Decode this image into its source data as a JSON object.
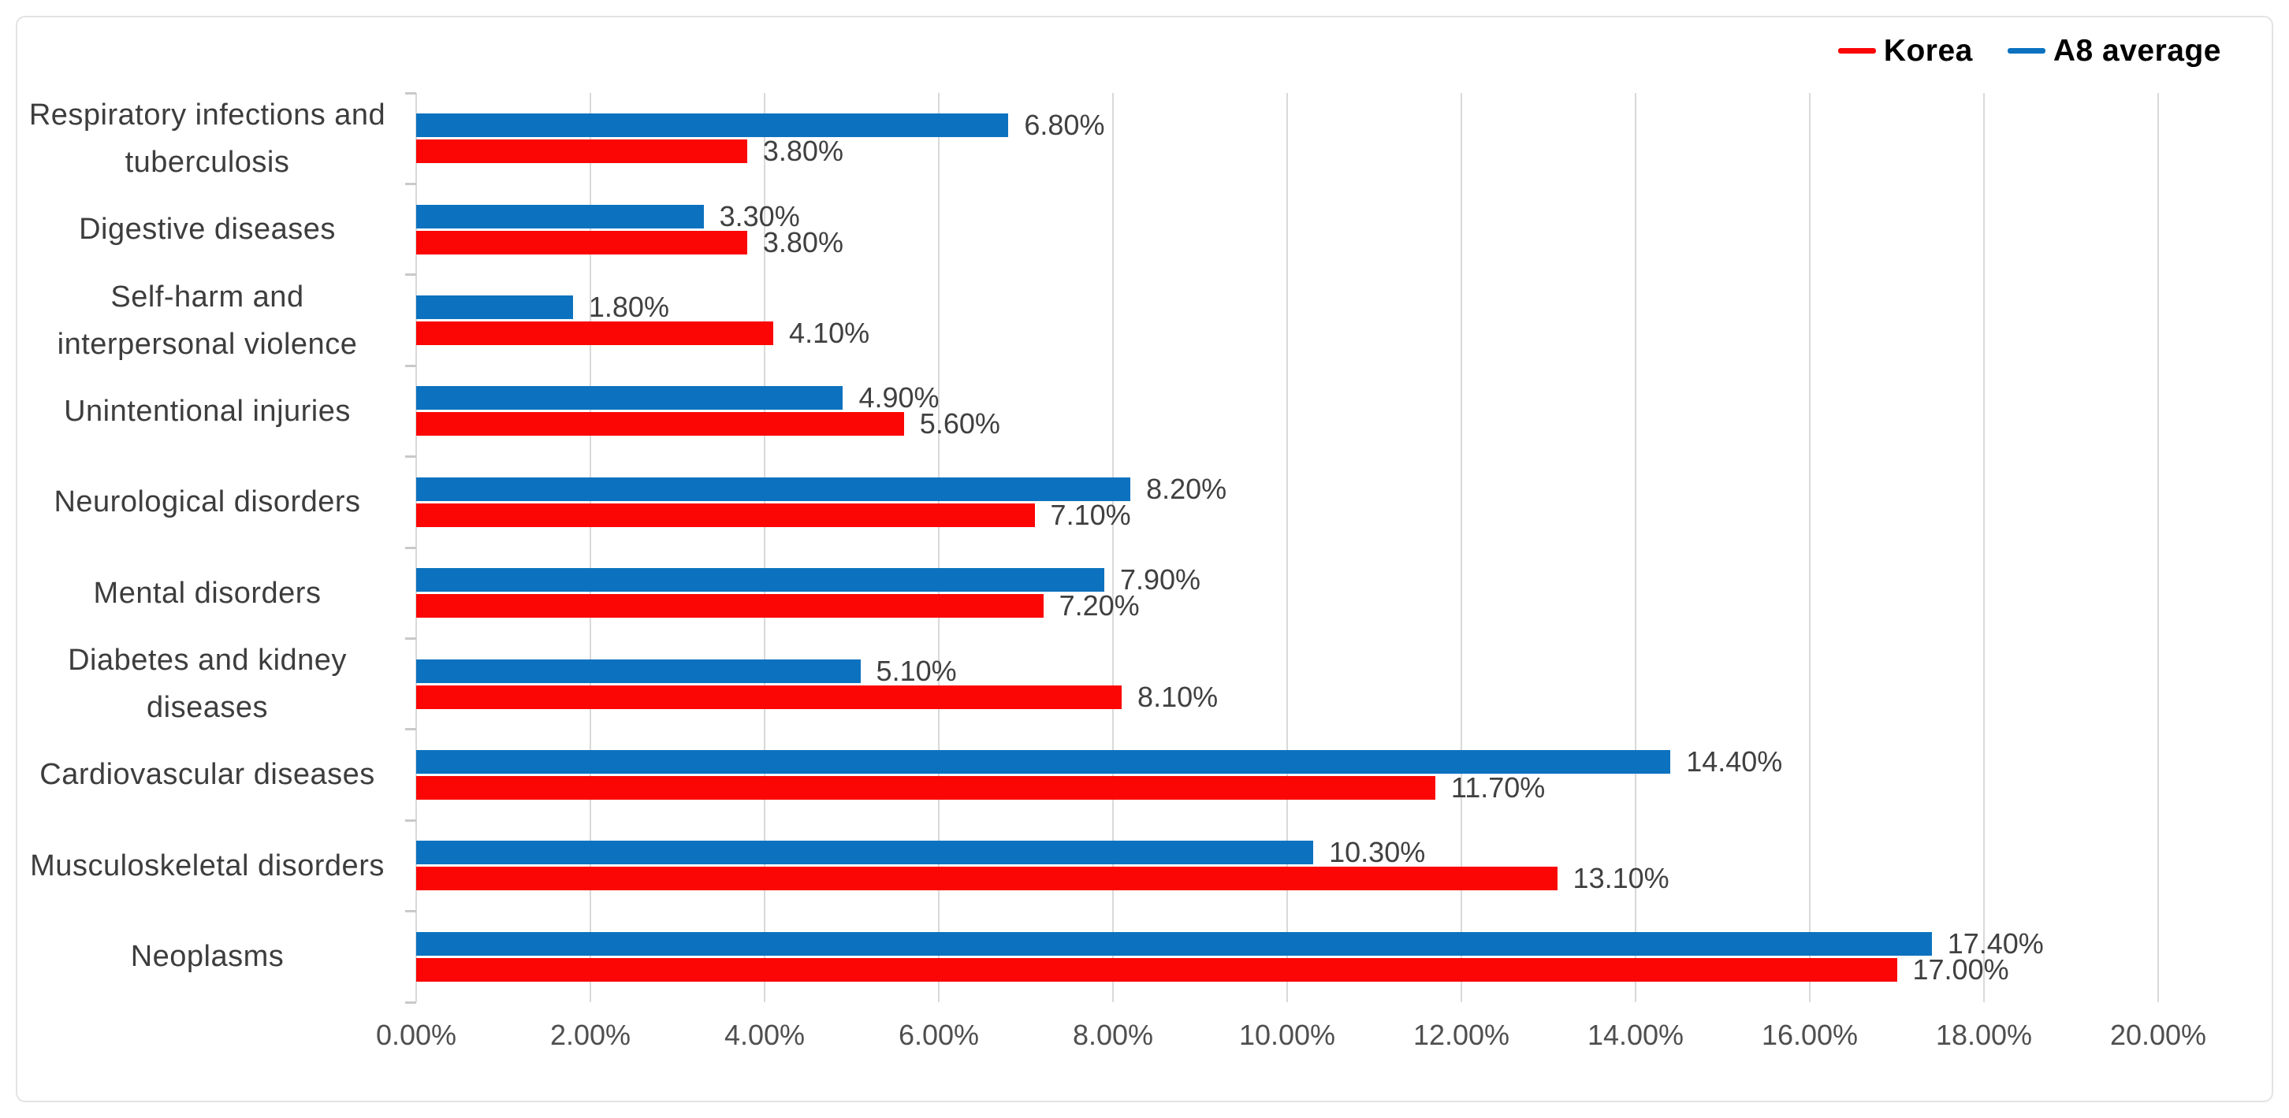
{
  "chart_data": {
    "type": "bar",
    "orientation": "horizontal",
    "title": "",
    "categories": [
      "Respiratory infections and tuberculosis",
      "Digestive diseases",
      "Self-harm and interpersonal violence",
      "Unintentional injuries",
      "Neurological disorders",
      "Mental disorders",
      "Diabetes and kidney diseases",
      "Cardiovascular diseases",
      "Musculoskeletal disorders",
      "Neoplasms"
    ],
    "category_label_lines": [
      [
        "Respiratory infections and",
        "tuberculosis"
      ],
      [
        "Digestive diseases"
      ],
      [
        "Self-harm and",
        "interpersonal violence"
      ],
      [
        "Unintentional injuries"
      ],
      [
        "Neurological disorders"
      ],
      [
        "Mental disorders"
      ],
      [
        "Diabetes and kidney",
        "diseases"
      ],
      [
        "Cardiovascular diseases"
      ],
      [
        "Musculoskeletal disorders"
      ],
      [
        "Neoplasms"
      ]
    ],
    "series": [
      {
        "name": "Korea",
        "color": "#fb0505",
        "values": [
          3.8,
          3.8,
          4.1,
          5.6,
          7.1,
          7.2,
          8.1,
          11.7,
          13.1,
          17.0
        ],
        "labels": [
          "3.80%",
          "3.80%",
          "4.10%",
          "5.60%",
          "7.10%",
          "7.20%",
          "8.10%",
          "11.70%",
          "13.10%",
          "17.00%"
        ]
      },
      {
        "name": "A8 average",
        "color": "#0c72bf",
        "values": [
          6.8,
          3.3,
          1.8,
          4.9,
          8.2,
          7.9,
          5.1,
          14.4,
          10.3,
          17.4
        ],
        "labels": [
          "6.80%",
          "3.30%",
          "1.80%",
          "4.90%",
          "8.20%",
          "7.90%",
          "5.10%",
          "14.40%",
          "10.30%",
          "17.40%"
        ]
      }
    ],
    "group_draw_order": [
      "A8 average",
      "Korea"
    ],
    "x_axis": {
      "min": 0,
      "max": 20,
      "tick_step": 2,
      "tick_labels": [
        "0.00%",
        "2.00%",
        "4.00%",
        "6.00%",
        "8.00%",
        "10.00%",
        "12.00%",
        "14.00%",
        "16.00%",
        "18.00%",
        "20.00%"
      ],
      "grid": true
    },
    "legend": {
      "position": "top-right",
      "items": [
        {
          "label": "Korea",
          "color": "#fb0505"
        },
        {
          "label": "A8 average",
          "color": "#0c72bf"
        }
      ]
    }
  },
  "colors": {
    "background": "#ffffff",
    "frame_border": "#e3e3e3",
    "gridline": "#d9d9d9",
    "tick_mark": "#c9c9c9",
    "category_text": "#3d3d3d",
    "axis_text": "#4f4f4f",
    "data_label_text": "#404040",
    "legend_text": "#000000"
  }
}
